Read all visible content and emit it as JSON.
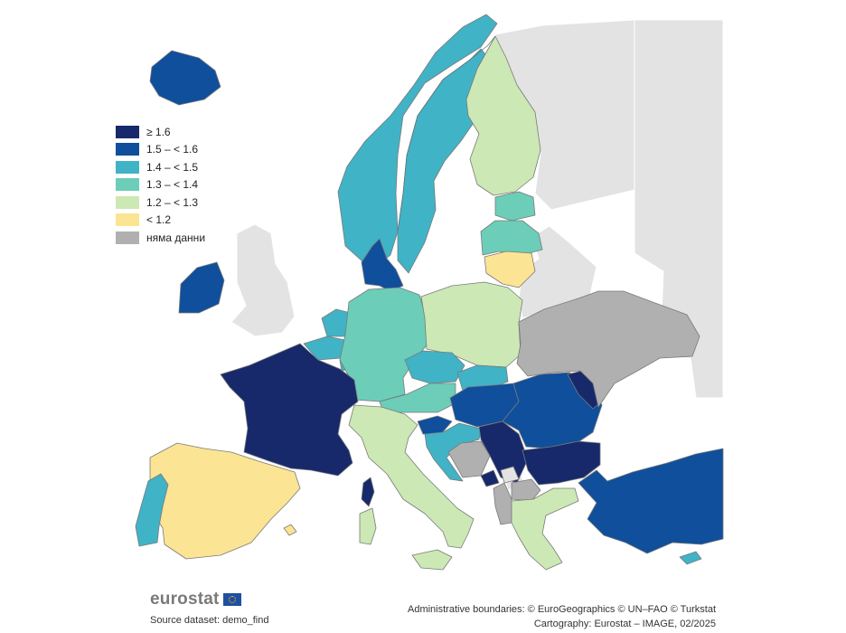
{
  "legend": {
    "items": [
      {
        "label": "≥ 1.6",
        "color": "#17296b"
      },
      {
        "label": "1.5 – < 1.6",
        "color": "#0f4f9c"
      },
      {
        "label": "1.4 – < 1.5",
        "color": "#40b3c6"
      },
      {
        "label": "1.3 – < 1.4",
        "color": "#6ccdb8"
      },
      {
        "label": "1.2 – < 1.3",
        "color": "#cce8b4"
      },
      {
        "label": "< 1.2",
        "color": "#fbe493"
      },
      {
        "label": "няма данни",
        "color": "#b0b0b0"
      }
    ]
  },
  "colors": {
    "non_eu_land": "#e3e3e3",
    "sea": "#ffffff",
    "border": "#7a7a7a"
  },
  "footer": {
    "logo": "eurostat",
    "source": "Source dataset: demo_find",
    "credits_line1": "Administrative boundaries: © EuroGeographics © UN–FAO © Turkstat",
    "credits_line2": "Cartography: Eurostat – IMAGE, 02/2025"
  }
}
